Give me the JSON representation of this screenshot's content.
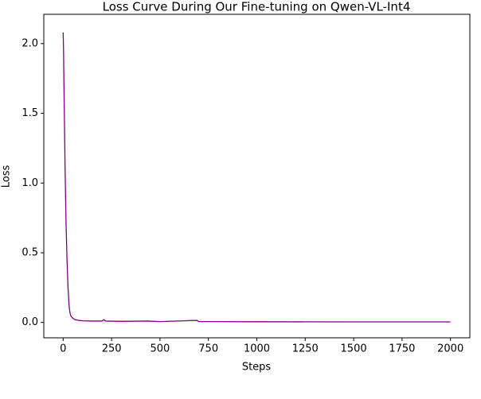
{
  "chart_data": {
    "type": "line",
    "title": "Loss Curve During Our Fine-tuning on Qwen-VL-Int4",
    "x_label": "Steps",
    "y_label": "Loss",
    "x": [
      0,
      2,
      5,
      10,
      15,
      20,
      25,
      30,
      35,
      40,
      50,
      60,
      80,
      100,
      150,
      200,
      210,
      220,
      300,
      440,
      500,
      690,
      700,
      1000,
      1500,
      2000
    ],
    "series": [
      {
        "name": "Loss",
        "color": "#800080",
        "values": [
          2.08,
          1.95,
          1.6,
          1.1,
          0.7,
          0.45,
          0.25,
          0.13,
          0.07,
          0.045,
          0.03,
          0.02,
          0.015,
          0.012,
          0.01,
          0.01,
          0.02,
          0.01,
          0.008,
          0.01,
          0.006,
          0.015,
          0.006,
          0.005,
          0.004,
          0.004
        ]
      }
    ],
    "xlim": [
      -100,
      2100
    ],
    "ylim": [
      -0.11,
      2.21
    ],
    "xticks": [
      0,
      250,
      500,
      750,
      1000,
      1250,
      1500,
      1750,
      2000
    ],
    "yticks": [
      {
        "value": 0,
        "label": "0.0"
      },
      {
        "value": 0.5,
        "label": "0.5"
      },
      {
        "value": 1,
        "label": "1.0"
      },
      {
        "value": 1.5,
        "label": "1.5"
      },
      {
        "value": 2,
        "label": "2.0"
      }
    ]
  }
}
